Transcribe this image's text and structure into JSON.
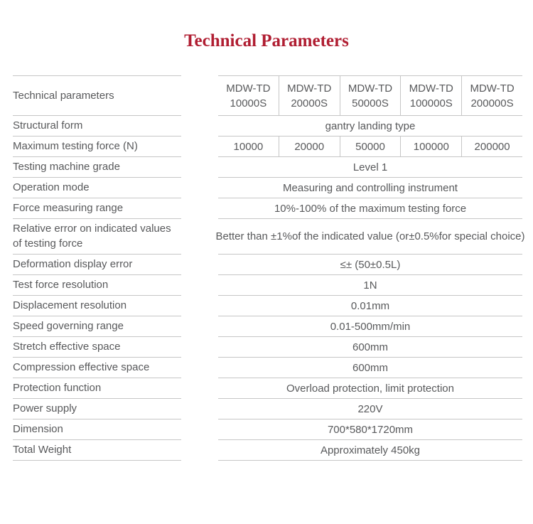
{
  "title": "Technical Parameters",
  "theme": {
    "title_color": "#b01e32",
    "line_color": "#c6c6c6",
    "text_color": "#58595b"
  },
  "table": {
    "corner_label": "Technical parameters",
    "model_columns": [
      {
        "line1": "MDW-TD",
        "line2": "10000S"
      },
      {
        "line1": "MDW-TD",
        "line2": "20000S"
      },
      {
        "line1": "MDW-TD",
        "line2": "50000S"
      },
      {
        "line1": "MDW-TD",
        "line2": "100000S"
      },
      {
        "line1": "MDW-TD",
        "line2": "200000S"
      }
    ],
    "rows": [
      {
        "label": "Structural form",
        "value": "gantry landing type"
      },
      {
        "label": "Maximum testing force (N)",
        "values": [
          "10000",
          "20000",
          "50000",
          "100000",
          "200000"
        ]
      },
      {
        "label": "Testing machine grade",
        "value": "Level 1"
      },
      {
        "label": "Operation mode",
        "value": "Measuring and controlling instrument"
      },
      {
        "label": "Force measuring range",
        "value": "10%-100% of the maximum testing force"
      },
      {
        "label": "Relative error on indicated values of testing force",
        "value": "Better than ±1%of the indicated value (or±0.5%for special choice)"
      },
      {
        "label": "Deformation display error",
        "value": "≤± (50±0.5L)"
      },
      {
        "label": "Test force resolution",
        "value": "1N"
      },
      {
        "label": "Displacement resolution",
        "value": "0.01mm"
      },
      {
        "label": "Speed governing range",
        "value": "0.01-500mm/min"
      },
      {
        "label": "Stretch effective space",
        "value": "600mm"
      },
      {
        "label": "Compression effective space",
        "value": "600mm"
      },
      {
        "label": "Protection function",
        "value": "Overload protection, limit protection"
      },
      {
        "label": "Power supply",
        "value": "220V"
      },
      {
        "label": "Dimension",
        "value": "700*580*1720mm"
      },
      {
        "label": "Total Weight",
        "value": "Approximately 450kg"
      }
    ]
  }
}
